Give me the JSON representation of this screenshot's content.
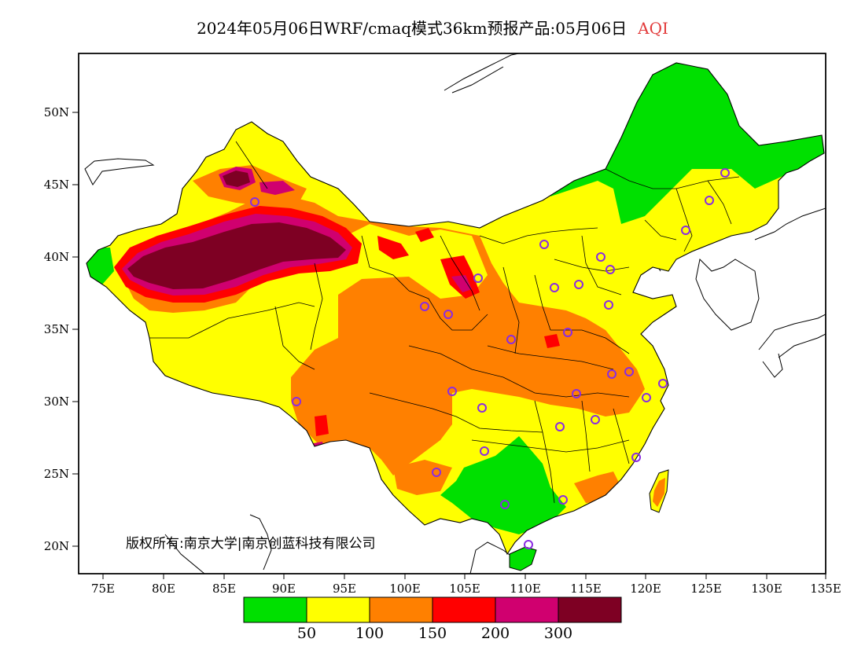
{
  "title": {
    "main": "2024年05月06日WRF/cmaq模式36km预报产品:05月06日",
    "variable": "AQI",
    "variable_color": "#e23b3b"
  },
  "axes": {
    "lat_labels": [
      "50N",
      "45N",
      "40N",
      "35N",
      "30N",
      "25N",
      "20N"
    ],
    "lon_labels": [
      "75E",
      "80E",
      "85E",
      "90E",
      "95E",
      "100E",
      "105E",
      "110E",
      "115E",
      "120E",
      "125E",
      "130E",
      "135E"
    ]
  },
  "copyright": "版权所有:南京大学|南京创蓝科技有限公司",
  "legend": {
    "colors": [
      "#00e000",
      "#ffff00",
      "#ff8000",
      "#ff0000",
      "#d0006f",
      "#7e0023"
    ],
    "labels": [
      "50",
      "100",
      "150",
      "200",
      "300"
    ]
  },
  "cities": {
    "count": 31,
    "marker_color": "#8a2be2"
  }
}
